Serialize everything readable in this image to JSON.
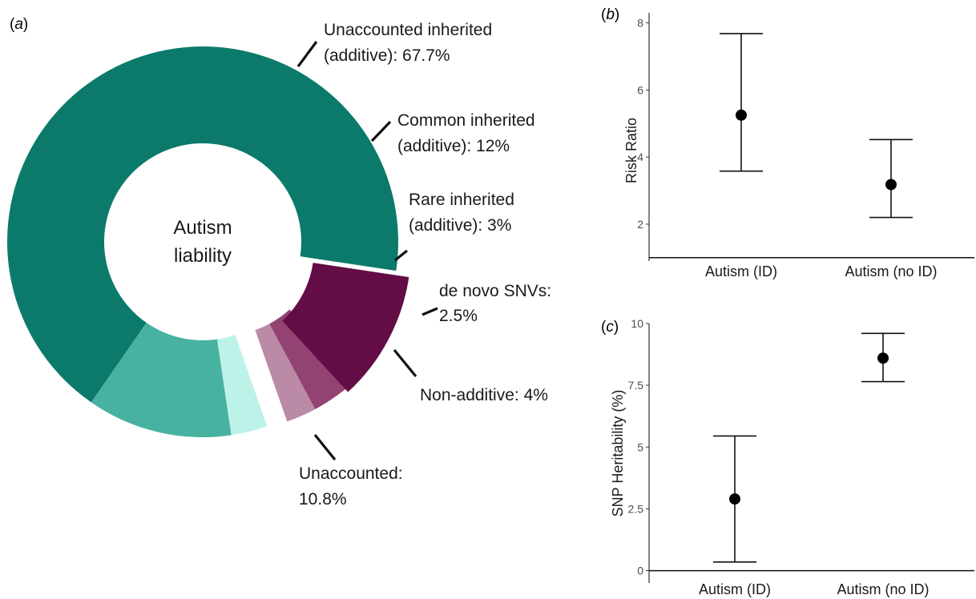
{
  "chart_data": [
    {
      "panel": "a",
      "type": "pie",
      "center_label": [
        "Autism",
        "liability"
      ],
      "slices": [
        {
          "label_lines": [
            "Unaccounted inherited",
            "(additive): 67.7%"
          ],
          "value": 67.7,
          "color": "#0b7a6a",
          "group": "inherited"
        },
        {
          "label_lines": [
            "Common inherited",
            "(additive): 12%"
          ],
          "value": 12,
          "color": "#48b2a0",
          "group": "inherited"
        },
        {
          "label_lines": [
            "Rare inherited",
            "(additive): 3%"
          ],
          "value": 3,
          "color": "#bdf2e8",
          "group": "inherited"
        },
        {
          "label_lines": [
            "de novo SNVs:",
            "2.5%"
          ],
          "value": 2.5,
          "color": "#bb8aa6",
          "group": "other"
        },
        {
          "label_lines": [
            "Non-additive: 4%"
          ],
          "value": 4,
          "color": "#934372",
          "group": "other"
        },
        {
          "label_lines": [
            "Unaccounted:",
            "10.8%"
          ],
          "value": 10.8,
          "color": "#640c46",
          "group": "unaccounted"
        }
      ]
    },
    {
      "panel": "b",
      "type": "scatter",
      "ylabel": "Risk Ratio",
      "ylim": [
        0.9,
        8.3
      ],
      "yticks": [
        2,
        4,
        6,
        8
      ],
      "reference_line": 1,
      "categories": [
        "Autism (ID)",
        "Autism (no ID)"
      ],
      "points": [
        {
          "category": "Autism (ID)",
          "y": 5.25,
          "lower": 3.58,
          "upper": 7.68
        },
        {
          "category": "Autism (no ID)",
          "y": 3.18,
          "lower": 2.2,
          "upper": 4.52
        }
      ]
    },
    {
      "panel": "c",
      "type": "scatter",
      "ylabel": "SNP Heritability (%)",
      "ylim": [
        -0.5,
        10
      ],
      "yticks": [
        0,
        2.5,
        5,
        7.5,
        10
      ],
      "ytick_labels": [
        "0",
        "2.5",
        "5",
        "7.5",
        "10"
      ],
      "reference_line": 0,
      "categories": [
        "Autism (ID)",
        "Autism (no ID)"
      ],
      "points": [
        {
          "category": "Autism (ID)",
          "y": 2.9,
          "lower": 0.35,
          "upper": 5.45
        },
        {
          "category": "Autism (no ID)",
          "y": 8.6,
          "lower": 7.65,
          "upper": 9.6
        }
      ]
    }
  ]
}
